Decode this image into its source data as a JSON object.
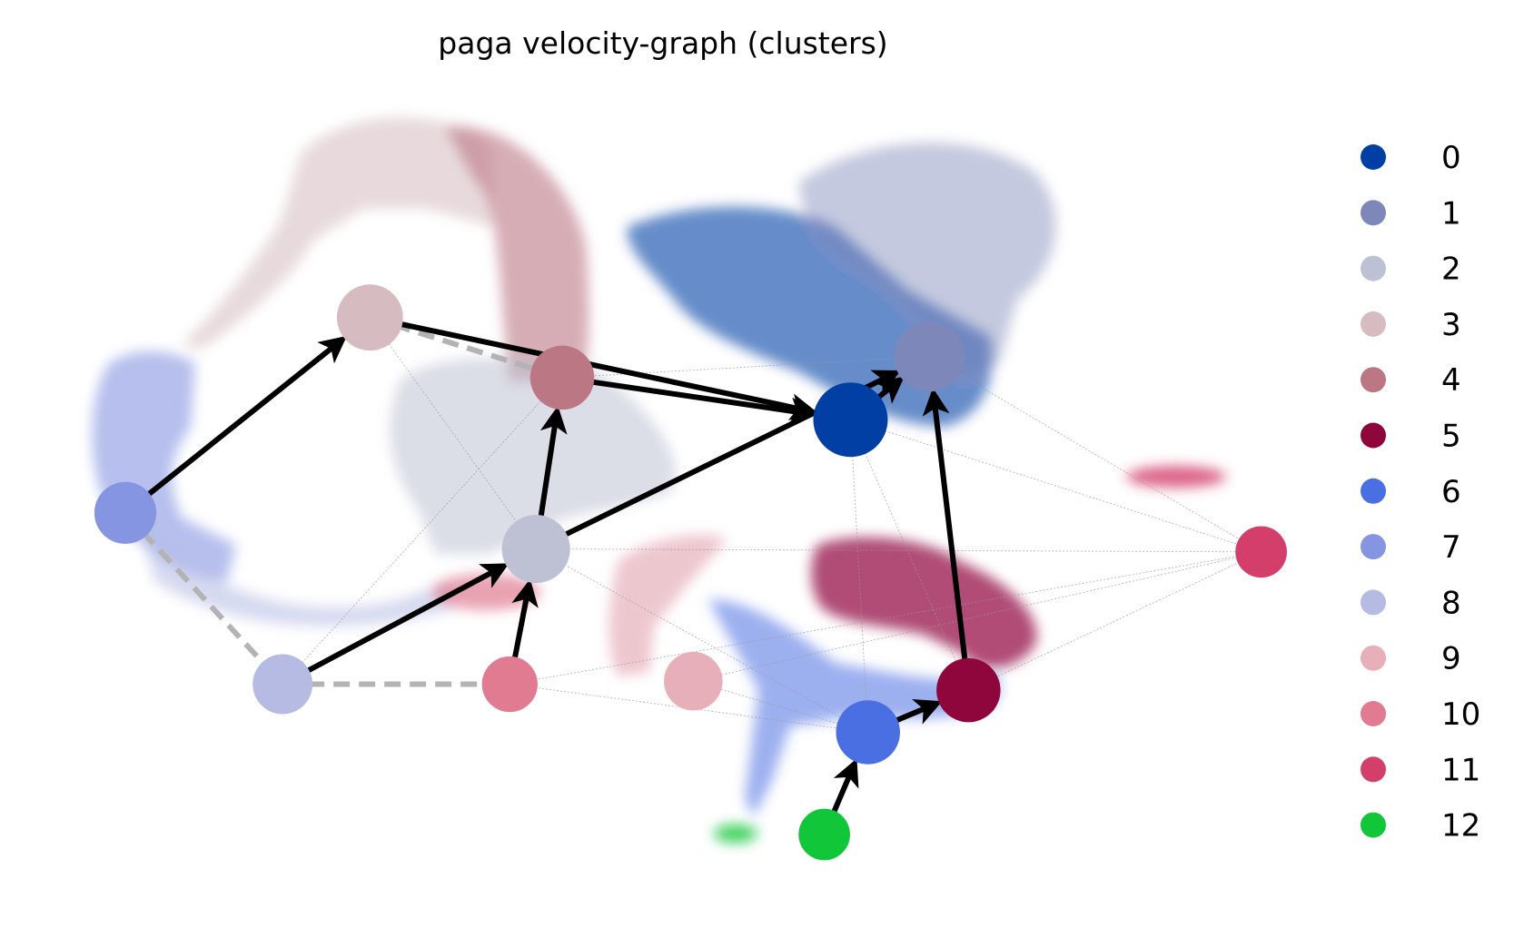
{
  "chart_data": {
    "type": "scatter",
    "title": "paga velocity-graph (clusters)",
    "xlabel": "",
    "ylabel": "",
    "grid": false,
    "axes_visible": false,
    "legend_position": "right",
    "clusters": [
      {
        "name": "0",
        "color": "#023fa5",
        "x": 0.83,
        "y": 0.69,
        "size": 1.0
      },
      {
        "name": "1",
        "color": "#7d87b9",
        "x": 0.92,
        "y": 0.795,
        "size": 0.9
      },
      {
        "name": "2",
        "color": "#bec1d4",
        "x": 0.47,
        "y": 0.475,
        "size": 0.85
      },
      {
        "name": "3",
        "color": "#d6bcc0",
        "x": 0.28,
        "y": 0.86,
        "size": 0.8
      },
      {
        "name": "4",
        "color": "#bb7784",
        "x": 0.5,
        "y": 0.76,
        "size": 0.75
      },
      {
        "name": "5",
        "color": "#8e063b",
        "x": 0.965,
        "y": 0.24,
        "size": 0.75
      },
      {
        "name": "6",
        "color": "#4a6fe3",
        "x": 0.85,
        "y": 0.17,
        "size": 0.75
      },
      {
        "name": "7",
        "color": "#8595e1",
        "x": 0.0,
        "y": 0.535,
        "size": 0.7
      },
      {
        "name": "8",
        "color": "#b5bbe3",
        "x": 0.18,
        "y": 0.25,
        "size": 0.65
      },
      {
        "name": "9",
        "color": "#e6afb9",
        "x": 0.65,
        "y": 0.255,
        "size": 0.62
      },
      {
        "name": "10",
        "color": "#e07b91",
        "x": 0.44,
        "y": 0.25,
        "size": 0.55
      },
      {
        "name": "11",
        "color": "#d33f6a",
        "x": 1.3,
        "y": 0.47,
        "size": 0.45
      },
      {
        "name": "12",
        "color": "#11c638",
        "x": 0.8,
        "y": 0.0,
        "size": 0.45
      }
    ],
    "directed_edges": [
      {
        "from": "7",
        "to": "3"
      },
      {
        "from": "3",
        "to": "0"
      },
      {
        "from": "4",
        "to": "0"
      },
      {
        "from": "0",
        "to": "1"
      },
      {
        "from": "2",
        "to": "1"
      },
      {
        "from": "5",
        "to": "1"
      },
      {
        "from": "2",
        "to": "4"
      },
      {
        "from": "8",
        "to": "2"
      },
      {
        "from": "10",
        "to": "2"
      },
      {
        "from": "6",
        "to": "5"
      },
      {
        "from": "12",
        "to": "6"
      }
    ],
    "dashed_edges": [
      {
        "from": "7",
        "to": "8"
      },
      {
        "from": "8",
        "to": "10"
      },
      {
        "from": "3",
        "to": "4"
      }
    ],
    "faint_edges": [
      {
        "from": "8",
        "to": "4"
      },
      {
        "from": "2",
        "to": "11"
      },
      {
        "from": "2",
        "to": "6"
      },
      {
        "from": "10",
        "to": "11"
      },
      {
        "from": "10",
        "to": "6"
      },
      {
        "from": "9",
        "to": "11"
      },
      {
        "from": "9",
        "to": "6"
      },
      {
        "from": "0",
        "to": "11"
      },
      {
        "from": "0",
        "to": "5"
      },
      {
        "from": "0",
        "to": "6"
      },
      {
        "from": "1",
        "to": "11"
      },
      {
        "from": "5",
        "to": "11"
      },
      {
        "from": "4",
        "to": "1"
      },
      {
        "from": "3",
        "to": "2"
      }
    ]
  }
}
